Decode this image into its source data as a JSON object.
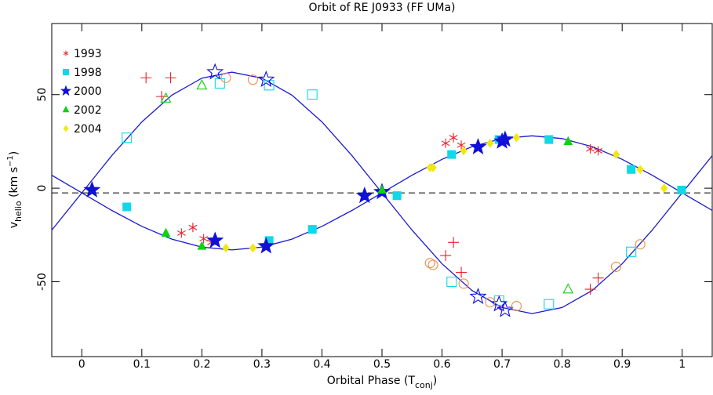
{
  "chart_data": {
    "type": "scatter",
    "title": "Orbit of RE J0933 (FF UMa)",
    "xlabel": [
      "Orbital Phase (T",
      "conj",
      ")"
    ],
    "ylabel": [
      "v",
      "helio",
      " (km s",
      "−1",
      ")"
    ],
    "xlim": [
      -0.05,
      1.05
    ],
    "ylim": [
      -90,
      88
    ],
    "xticks": [
      0,
      0.1,
      0.2,
      0.3,
      0.4,
      0.5,
      0.6,
      0.7,
      0.8,
      0.9,
      1
    ],
    "yticks": [
      -50,
      0,
      50
    ],
    "hline": -2.5,
    "legend": "upper left",
    "curve_color": "#1a1ad0",
    "curves": [
      {
        "x": [
          -0.05,
          0,
          0.05,
          0.1,
          0.15,
          0.2,
          0.25,
          0.3,
          0.35,
          0.4,
          0.45,
          0.5,
          0.55,
          0.6,
          0.65,
          0.7,
          0.75,
          0.8,
          0.85,
          0.9,
          0.95,
          1,
          1.05
        ],
        "values": [
          -22.4,
          -2.5,
          17.4,
          35.4,
          49.7,
          58.8,
          62,
          58.8,
          49.7,
          35.4,
          17.4,
          -2.5,
          -22.4,
          -40.4,
          -54.7,
          -63.8,
          -67,
          -63.8,
          -54.7,
          -40.4,
          -22.4,
          -2.5,
          17.4
        ]
      },
      {
        "x": [
          -0.05,
          0,
          0.05,
          0.1,
          0.15,
          0.2,
          0.25,
          0.3,
          0.35,
          0.4,
          0.45,
          0.5,
          0.55,
          0.6,
          0.65,
          0.7,
          0.75,
          0.8,
          0.85,
          0.9,
          0.95,
          1,
          1.05
        ],
        "values": [
          6.9,
          -2.5,
          -11.9,
          -20.4,
          -27.2,
          -31.5,
          -33,
          -31.5,
          -27.2,
          -20.4,
          -11.9,
          -2.5,
          6.9,
          15.4,
          22.2,
          26.5,
          28,
          26.5,
          22.2,
          15.4,
          6.9,
          -2.5,
          -11.9
        ]
      }
    ],
    "series": [
      {
        "name": "1993",
        "color": "#e8202a",
        "marker": "asterisk",
        "open_marker": "plus",
        "open_color": "#e8202a",
        "x": [
          0.166,
          0.185,
          0.203,
          0.216,
          0.606,
          0.619,
          0.632,
          0.847,
          0.86
        ],
        "values": [
          -24,
          -21,
          -27,
          -29,
          24,
          27,
          23,
          21,
          20
        ],
        "open_x": [
          0.107,
          0.133,
          0.148,
          0.606,
          0.619,
          0.632,
          0.847,
          0.86
        ],
        "open_values": [
          59,
          49,
          59,
          -36,
          -29,
          -45,
          -54,
          -48
        ]
      },
      {
        "name": "1998",
        "color": "#10d8e8",
        "marker": "square",
        "open_marker": "square",
        "open_color": "#10d8e8",
        "x": [
          0.075,
          0.312,
          0.384,
          0.525,
          0.616,
          0.695,
          0.778,
          0.915,
          0.999
        ],
        "values": [
          -10,
          -28,
          -22,
          -4,
          18,
          26,
          26,
          10,
          -1
        ],
        "open_x": [
          0.075,
          0.23,
          0.312,
          0.384,
          0.616,
          0.695,
          0.778,
          0.915
        ],
        "open_values": [
          27,
          56,
          55,
          50,
          -50,
          -60,
          -62,
          -34
        ]
      },
      {
        "name": "2000",
        "color": "#1010d8",
        "marker": "star",
        "open_marker": "star",
        "open_color": "#1010d8",
        "x": [
          0.017,
          0.222,
          0.307,
          0.471,
          0.5,
          0.66,
          0.7,
          0.705
        ],
        "values": [
          -1,
          -28,
          -31,
          -4,
          -2,
          22,
          25,
          26
        ],
        "open_x": [
          0.222,
          0.307,
          0.66,
          0.695,
          0.705
        ],
        "open_values": [
          62,
          58,
          -58,
          -62,
          -65
        ]
      },
      {
        "name": "2002",
        "color": "#10d010",
        "marker": "triangle",
        "open_marker": "triangle",
        "open_color": "#10d010",
        "x": [
          0.14,
          0.2,
          0.5,
          0.81
        ],
        "values": [
          -24,
          -31,
          -1,
          25
        ],
        "open_x": [
          0.14,
          0.2,
          0.81
        ],
        "open_values": [
          48,
          55,
          -54
        ]
      },
      {
        "name": "2004",
        "color": "#f0e810",
        "marker": "diamond",
        "open_marker": "circle",
        "open_color": "#f08a40",
        "x": [
          0.24,
          0.285,
          0.58,
          0.585,
          0.636,
          0.68,
          0.724,
          0.89,
          0.93,
          0.97
        ],
        "values": [
          -32,
          -32,
          11,
          11,
          20,
          24,
          27,
          18,
          10,
          0
        ],
        "open_x": [
          0.24,
          0.285,
          0.58,
          0.585,
          0.636,
          0.68,
          0.724,
          0.89,
          0.93
        ],
        "open_values": [
          59,
          58,
          -40,
          -41,
          -51,
          -61,
          -63,
          -42,
          -30
        ]
      }
    ]
  }
}
